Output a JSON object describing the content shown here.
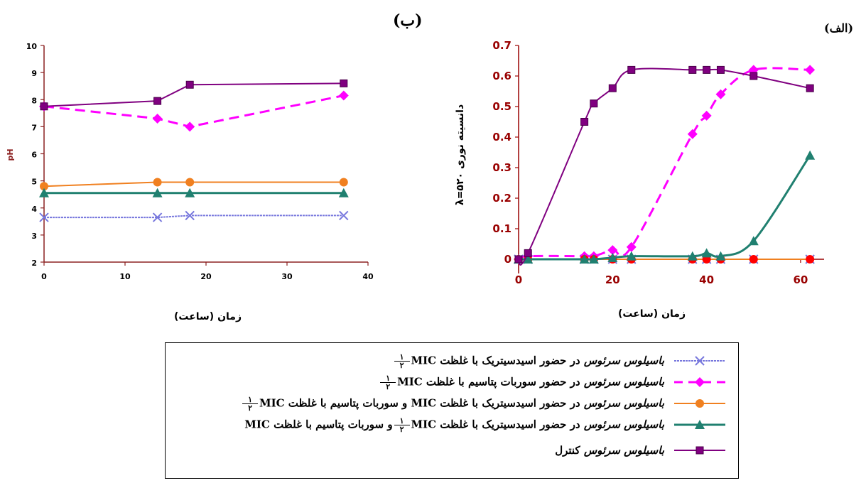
{
  "chart_data": [
    {
      "type": "line",
      "panel_label": "(الف)",
      "xlabel": "زمان (ساعت)",
      "ylabel": "دانسیته نوری λ=۵۲۰",
      "xlim": [
        0,
        65
      ],
      "ylim": [
        0,
        0.7
      ],
      "xticks": [
        0,
        20,
        40,
        60
      ],
      "yticks": [
        0,
        0.1,
        0.2,
        0.3,
        0.4,
        0.5,
        0.6,
        0.7
      ],
      "series": [
        {
          "key": "s1",
          "x": [
            0,
            2,
            14,
            16,
            20,
            24,
            37,
            40,
            43,
            50,
            62
          ],
          "y": [
            0,
            0,
            0,
            0,
            0,
            0,
            0,
            0,
            0,
            0,
            0
          ]
        },
        {
          "key": "s2",
          "x": [
            0,
            2,
            14,
            16,
            20,
            24,
            37,
            40,
            43,
            50,
            62
          ],
          "y": [
            0,
            0.01,
            0.01,
            0.01,
            0.03,
            0.04,
            0.41,
            0.47,
            0.54,
            0.62,
            0.62
          ]
        },
        {
          "key": "s3",
          "x": [
            0,
            2,
            14,
            16,
            20,
            24,
            37,
            40,
            43,
            50,
            62
          ],
          "y": [
            0,
            0,
            0,
            0,
            0,
            0,
            0,
            0,
            0,
            0,
            0
          ]
        },
        {
          "key": "s4",
          "x": [
            0,
            2,
            14,
            16,
            20,
            24,
            37,
            40,
            43,
            50,
            62
          ],
          "y": [
            0,
            0,
            0,
            0,
            0.005,
            0.01,
            0.01,
            0.02,
            0.01,
            0.06,
            0.34
          ]
        },
        {
          "key": "s5",
          "x": [
            0,
            2,
            14,
            16,
            20,
            24,
            37,
            40,
            43,
            50,
            62
          ],
          "y": [
            0,
            0.02,
            0.45,
            0.51,
            0.56,
            0.62,
            0.62,
            0.62,
            0.62,
            0.6,
            0.56
          ]
        }
      ]
    },
    {
      "type": "line",
      "panel_label": "(ب)",
      "xlabel": "زمان (ساعت)",
      "ylabel": "pH",
      "xlim": [
        0,
        40
      ],
      "ylim": [
        2,
        10
      ],
      "xticks": [
        0,
        10,
        20,
        30,
        40
      ],
      "yticks": [
        2,
        3,
        4,
        5,
        6,
        7,
        8,
        9,
        10
      ],
      "series": [
        {
          "key": "s1",
          "x": [
            0,
            14,
            18,
            37
          ],
          "y": [
            3.65,
            3.65,
            3.72,
            3.72
          ]
        },
        {
          "key": "s2",
          "x": [
            0,
            14,
            18,
            37
          ],
          "y": [
            7.75,
            7.3,
            7.0,
            8.15
          ]
        },
        {
          "key": "s3",
          "x": [
            0,
            14,
            18,
            37
          ],
          "y": [
            4.8,
            4.95,
            4.95,
            4.95
          ]
        },
        {
          "key": "s4",
          "x": [
            0,
            14,
            18,
            37
          ],
          "y": [
            4.55,
            4.55,
            4.55,
            4.55
          ]
        },
        {
          "key": "s5",
          "x": [
            0,
            14,
            18,
            37
          ],
          "y": [
            7.75,
            7.95,
            8.55,
            8.6
          ]
        }
      ]
    }
  ],
  "series_styles": {
    "s1": {
      "color": "#7777dd",
      "marker": "x",
      "dash": "wavy",
      "width": 2
    },
    "s2": {
      "color": "#ff00ff",
      "marker": "diamond",
      "dash": "dashed",
      "width": 3
    },
    "s3": {
      "color": "#f08020",
      "marker": "circle",
      "dash": "solid",
      "width": 2
    },
    "s4": {
      "color": "#208070",
      "marker": "triangle",
      "dash": "solid",
      "width": 3
    },
    "s5": {
      "color": "#800080",
      "marker": "square",
      "dash": "solid",
      "width": 2
    }
  },
  "panel_a_marker_colors": {
    "s3": "#ff0000"
  },
  "panel_a_axis_color": "#990000",
  "panel_b_axis_color": "#8b2020",
  "legend": {
    "entries": [
      {
        "key": "s1",
        "prefix": "باسیلوس سرئوس",
        "text": " در حضور اسیدسیتریک با غلظت MIC",
        "frac_top": "۱",
        "frac_bottom": "۲",
        "suffix": ""
      },
      {
        "key": "s2",
        "prefix": "باسیلوس سرئوس",
        "text": " در حضور سوربات پتاسیم با غلظت MIC",
        "frac_top": "۱",
        "frac_bottom": "۲",
        "suffix": ""
      },
      {
        "key": "s3",
        "prefix": "باسیلوس سرئوس",
        "text": " در حضور اسیدسیتریک با غلظت MIC و سوربات پتاسیم  با غلظت MIC",
        "frac_top": "۱",
        "frac_bottom": "۲",
        "suffix": ""
      },
      {
        "key": "s4",
        "prefix": "باسیلوس سرئوس",
        "text": " در حضور اسیدسیتریک با غلظت MIC",
        "frac_top": "۱",
        "frac_bottom": "۲",
        "suffix": "و سوربات پتاسیم  با غلظت MIC"
      },
      {
        "key": "s5",
        "prefix": "باسیلوس سرئوس",
        "text": " کنترل",
        "frac_top": "",
        "frac_bottom": "",
        "suffix": ""
      }
    ]
  }
}
